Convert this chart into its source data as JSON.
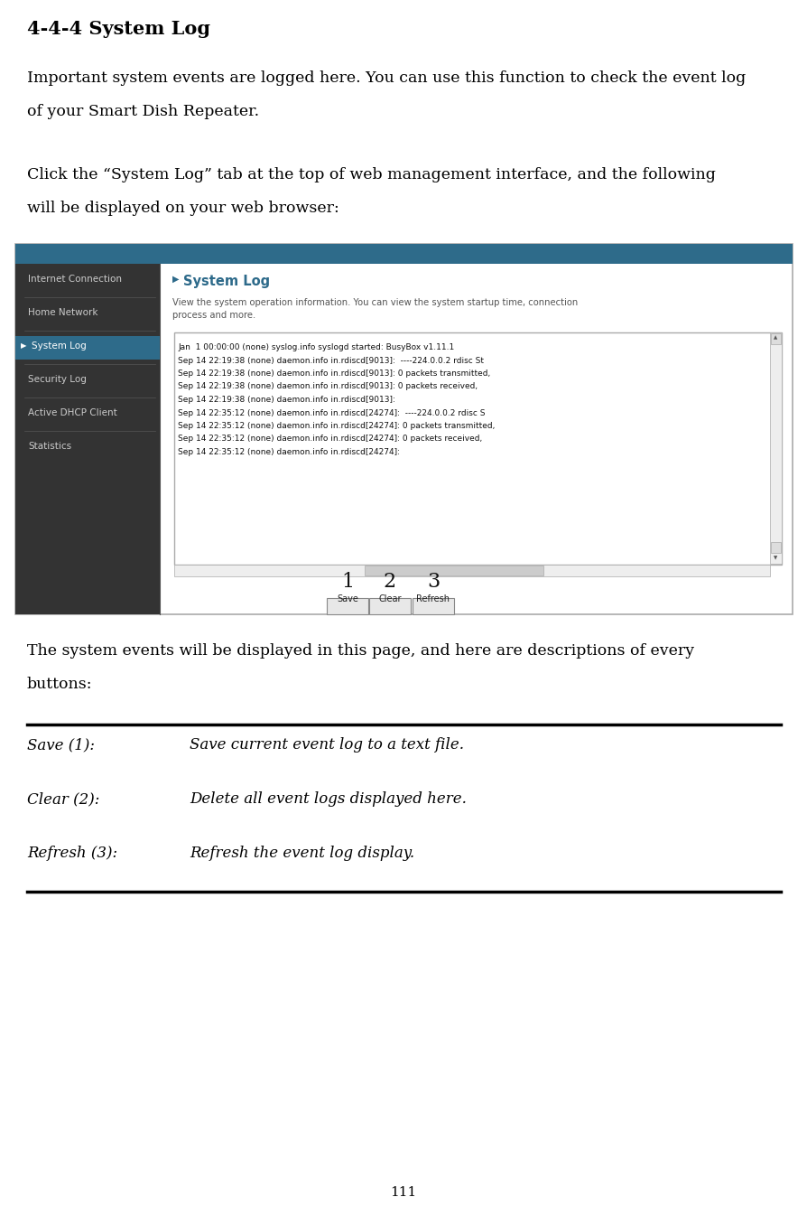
{
  "title": "4-4-4 System Log",
  "para1_line1": "Important system events are logged here. You can use this function to check the event log",
  "para1_line2": "of your Smart Dish Repeater.",
  "para2_line1": "Click the “System Log” tab at the top of web management interface, and the following",
  "para2_line2": "will be displayed on your web browser:",
  "para3_line1": "The system events will be displayed in this page, and here are descriptions of every",
  "para3_line2": "buttons:",
  "page_number": "111",
  "sidebar_bg": "#333333",
  "header_bg": "#2e6b8a",
  "active_item_bg": "#2e6b8a",
  "sidebar_items": [
    "Internet Connection",
    "Home Network",
    "System Log",
    "Security Log",
    "Active DHCP Client",
    "Statistics"
  ],
  "active_item": "System Log",
  "content_title": "System Log",
  "content_subtitle": "View the system operation information. You can view the system startup time, connection\nprocess and more.",
  "log_lines": [
    "Jan  1 00:00:00 (none) syslog.info syslogd started: BusyBox v1.11.1",
    "Sep 14 22:19:38 (none) daemon.info in.rdiscd[9013]:  ----224.0.0.2 rdisc St",
    "Sep 14 22:19:38 (none) daemon.info in.rdiscd[9013]: 0 packets transmitted,",
    "Sep 14 22:19:38 (none) daemon.info in.rdiscd[9013]: 0 packets received,",
    "Sep 14 22:19:38 (none) daemon.info in.rdiscd[9013]:",
    "Sep 14 22:35:12 (none) daemon.info in.rdiscd[24274]:  ----224.0.0.2 rdisc S",
    "Sep 14 22:35:12 (none) daemon.info in.rdiscd[24274]: 0 packets transmitted,",
    "Sep 14 22:35:12 (none) daemon.info in.rdiscd[24274]: 0 packets received,",
    "Sep 14 22:35:12 (none) daemon.info in.rdiscd[24274]:"
  ],
  "buttons": [
    "Save",
    "Clear",
    "Refresh"
  ],
  "button_labels": [
    "1",
    "2",
    "3"
  ],
  "table_rows": [
    [
      "Save (1):",
      "Save current event log to a text file."
    ],
    [
      "Clear (2):",
      "Delete all event logs displayed here."
    ],
    [
      "Refresh (3):",
      "Refresh the event log display."
    ]
  ],
  "bg_color": "#ffffff",
  "text_color": "#000000"
}
